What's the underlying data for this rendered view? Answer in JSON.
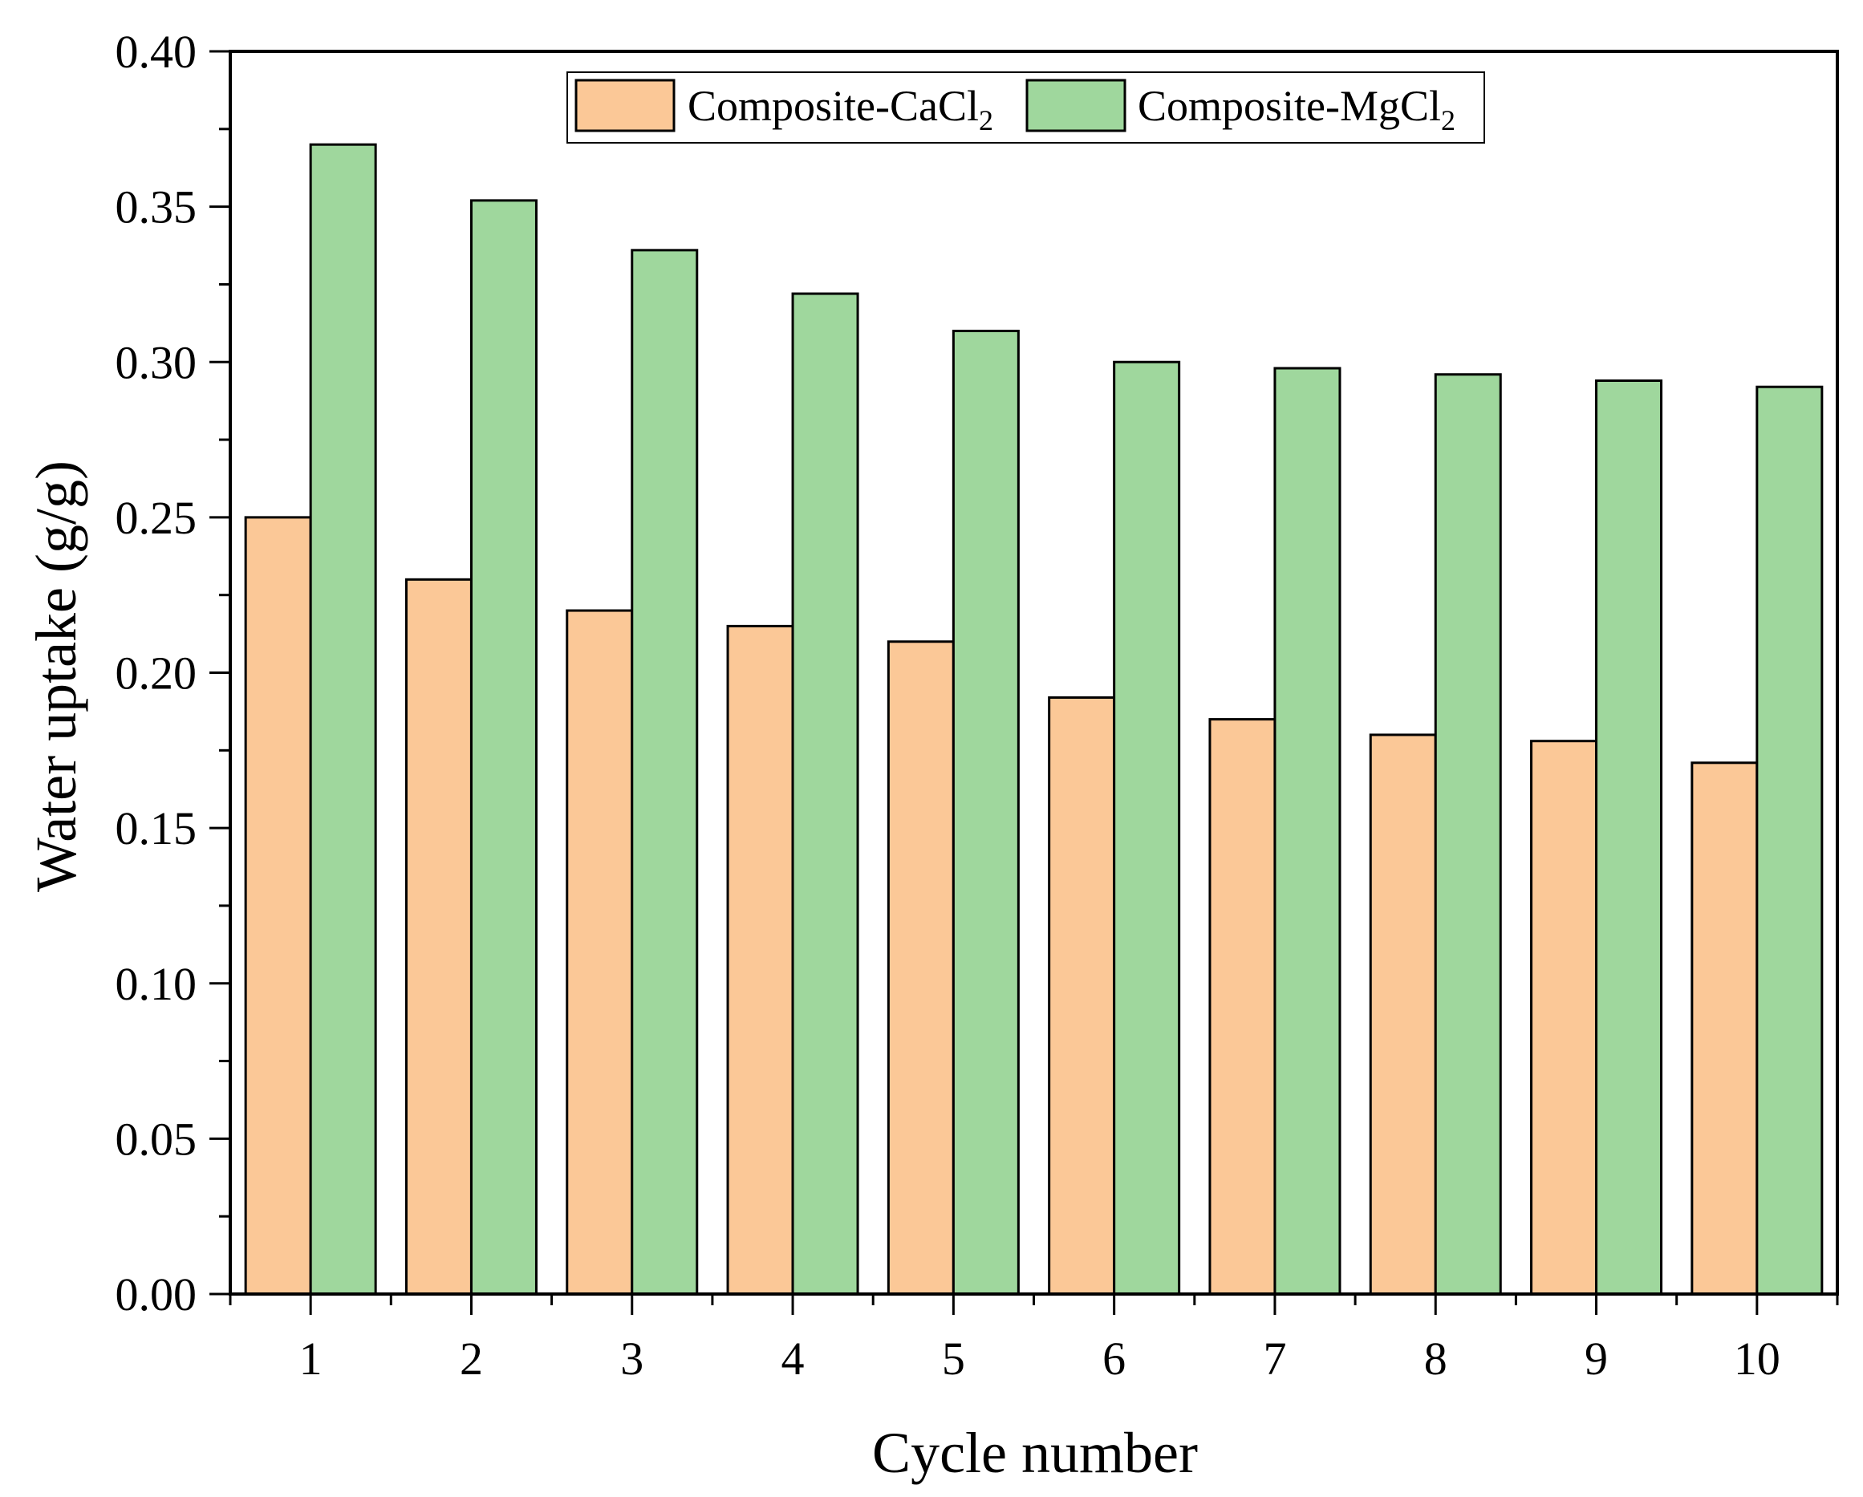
{
  "chart_data": {
    "type": "bar",
    "title": "",
    "xlabel": "Cycle number",
    "ylabel": "Water uptake (g/g)",
    "categories": [
      "1",
      "2",
      "3",
      "4",
      "5",
      "6",
      "7",
      "8",
      "9",
      "10"
    ],
    "ylim": [
      0,
      0.4
    ],
    "yticks": [
      "0.00",
      "0.05",
      "0.10",
      "0.15",
      "0.20",
      "0.25",
      "0.30",
      "0.35",
      "0.40"
    ],
    "grid": false,
    "legend_position": "top-center",
    "series": [
      {
        "name": "Composite-CaCl2",
        "legend_main": "Composite-CaCl",
        "legend_sub": "2",
        "color": "#FBC897",
        "values": [
          0.25,
          0.23,
          0.22,
          0.215,
          0.21,
          0.192,
          0.185,
          0.18,
          0.178,
          0.171
        ]
      },
      {
        "name": "Composite-MgCl2",
        "legend_main": "Composite-MgCl",
        "legend_sub": "2",
        "color": "#9FD79D",
        "values": [
          0.37,
          0.352,
          0.336,
          0.322,
          0.31,
          0.3,
          0.298,
          0.296,
          0.294,
          0.292
        ]
      }
    ]
  }
}
